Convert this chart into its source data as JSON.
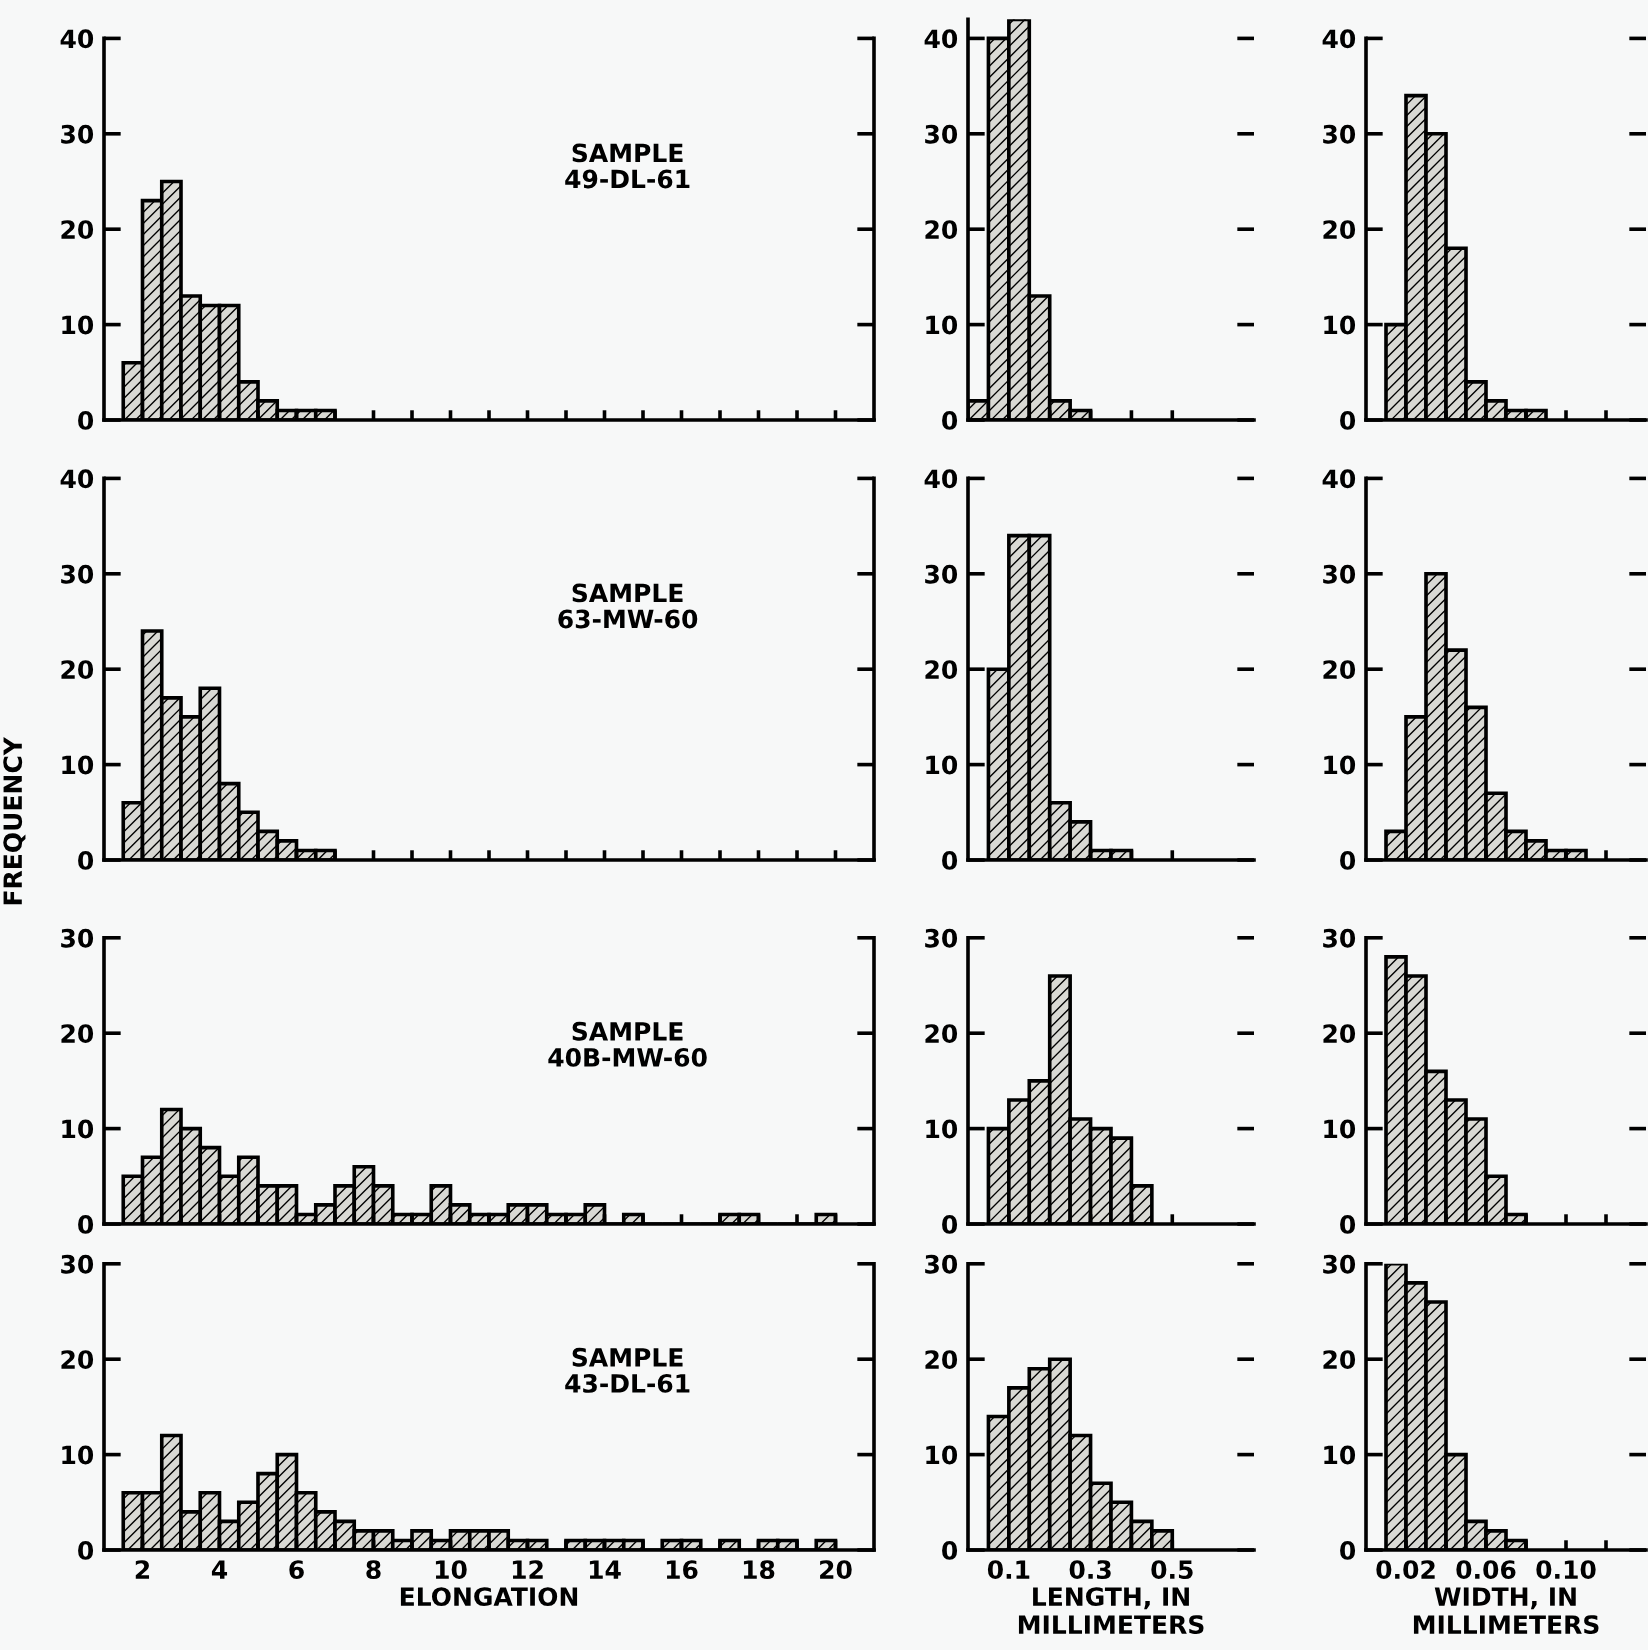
{
  "chart_data": [
    {
      "type": "histogram",
      "annotations": [
        "SAMPLE\n49-DL-61"
      ],
      "tick_labels": "y",
      "bins": [
        1.5,
        2,
        2.5,
        3,
        3.5,
        4,
        4.5,
        5,
        5.5,
        6,
        6.5,
        7
      ],
      "values": [
        6,
        23,
        25,
        13,
        12,
        12,
        4,
        2,
        1,
        1,
        1
      ],
      "xlim": [
        1,
        21
      ],
      "ylim": [
        0,
        40
      ],
      "yticks": [
        0,
        10,
        20,
        30,
        40
      ],
      "xticks": [
        2,
        {
          "value": 3,
          "label": null
        },
        4,
        {
          "value": 5,
          "label": null
        },
        6,
        {
          "value": 7,
          "label": null
        },
        8,
        {
          "value": 9,
          "label": null
        },
        10,
        {
          "value": 11,
          "label": null
        },
        12,
        {
          "value": 13,
          "label": null
        },
        14,
        {
          "value": 15,
          "label": null
        },
        16,
        {
          "value": 17,
          "label": null
        },
        18,
        {
          "value": 19,
          "label": null
        },
        20
      ]
    },
    {
      "type": "histogram",
      "tick_labels": "y",
      "bins": [
        0,
        0.05,
        0.1,
        0.15,
        0.2,
        0.25,
        0.3
      ],
      "values": [
        2,
        40,
        42,
        13,
        2,
        1
      ],
      "xlim": [
        0,
        0.7
      ],
      "ylim": [
        0,
        42
      ],
      "yticks": [
        0,
        10,
        20,
        30,
        40
      ],
      "xticks": [
        0.1,
        {
          "value": 0.2,
          "label": null
        },
        0.3,
        {
          "value": 0.4,
          "label": null
        },
        0.5
      ]
    },
    {
      "type": "histogram",
      "tick_labels": "y",
      "bins": [
        0.01,
        0.02,
        0.03,
        0.04,
        0.05,
        0.06,
        0.07,
        0.08,
        0.09
      ],
      "values": [
        10,
        34,
        30,
        18,
        4,
        2,
        1,
        1
      ],
      "xlim": [
        0,
        0.14
      ],
      "ylim": [
        0,
        40
      ],
      "yticks": [
        0,
        10,
        20,
        30,
        40
      ],
      "xticks": [
        0.02,
        {
          "value": 0.04,
          "label": null
        },
        0.06,
        {
          "value": 0.08,
          "label": null
        },
        0.1,
        {
          "value": 0.12,
          "label": null
        }
      ]
    },
    {
      "type": "histogram",
      "annotations": [
        "SAMPLE\n63-MW-60"
      ],
      "ylabel": "FREQUENCY",
      "tick_labels": "y",
      "bins": [
        1.5,
        2,
        2.5,
        3,
        3.5,
        4,
        4.5,
        5,
        5.5,
        6,
        6.5,
        7
      ],
      "values": [
        6,
        24,
        17,
        15,
        18,
        8,
        5,
        3,
        2,
        1,
        1
      ],
      "xlim": [
        1,
        21
      ],
      "ylim": [
        0,
        40
      ],
      "yticks": [
        0,
        10,
        20,
        30,
        40
      ],
      "xticks": [
        2,
        {
          "value": 3,
          "label": null
        },
        4,
        {
          "value": 5,
          "label": null
        },
        6,
        {
          "value": 7,
          "label": null
        },
        8,
        {
          "value": 9,
          "label": null
        },
        10,
        {
          "value": 11,
          "label": null
        },
        12,
        {
          "value": 13,
          "label": null
        },
        14,
        {
          "value": 15,
          "label": null
        },
        16,
        {
          "value": 17,
          "label": null
        },
        18,
        {
          "value": 19,
          "label": null
        },
        20
      ]
    },
    {
      "type": "histogram",
      "tick_labels": "y",
      "bins": [
        0.05,
        0.1,
        0.15,
        0.2,
        0.25,
        0.3,
        0.35,
        0.4
      ],
      "values": [
        20,
        34,
        34,
        6,
        4,
        1,
        1
      ],
      "xlim": [
        0,
        0.7
      ],
      "ylim": [
        0,
        40
      ],
      "yticks": [
        0,
        10,
        20,
        30,
        40
      ],
      "xticks": [
        0.1,
        {
          "value": 0.2,
          "label": null
        },
        0.3,
        {
          "value": 0.4,
          "label": null
        },
        0.5
      ]
    },
    {
      "type": "histogram",
      "tick_labels": "y",
      "bins": [
        0.01,
        0.02,
        0.03,
        0.04,
        0.05,
        0.06,
        0.07,
        0.08,
        0.09,
        0.1,
        0.11
      ],
      "values": [
        3,
        15,
        30,
        22,
        16,
        7,
        3,
        2,
        1,
        1
      ],
      "xlim": [
        0,
        0.14
      ],
      "ylim": [
        0,
        40
      ],
      "yticks": [
        0,
        10,
        20,
        30,
        40
      ],
      "xticks": [
        0.02,
        {
          "value": 0.04,
          "label": null
        },
        0.06,
        {
          "value": 0.08,
          "label": null
        },
        0.1,
        {
          "value": 0.12,
          "label": null
        }
      ]
    },
    {
      "type": "histogram",
      "annotations": [
        "SAMPLE\n40B-MW-60"
      ],
      "tick_labels": "y",
      "bins": [
        1.5,
        2,
        2.5,
        3,
        3.5,
        4,
        4.5,
        5,
        5.5,
        6,
        6.5,
        7,
        7.5,
        8,
        8.5,
        9,
        9.5,
        10,
        10.5,
        11,
        11.5,
        12,
        12.5,
        13,
        13.5,
        14,
        14.5,
        15,
        15.5,
        16,
        16.5,
        17,
        17.5,
        18,
        18.5,
        19,
        19.5,
        20
      ],
      "values": [
        5,
        7,
        12,
        10,
        8,
        5,
        7,
        4,
        4,
        1,
        2,
        4,
        6,
        4,
        1,
        1,
        4,
        2,
        1,
        1,
        2,
        2,
        1,
        1,
        2,
        0,
        1,
        0,
        0,
        0,
        0,
        1,
        1,
        0,
        0,
        0,
        1
      ],
      "xlim": [
        1,
        21
      ],
      "ylim": [
        0,
        30
      ],
      "yticks": [
        0,
        10,
        20,
        30
      ],
      "xticks": [
        2,
        {
          "value": 3,
          "label": null
        },
        4,
        {
          "value": 5,
          "label": null
        },
        6,
        {
          "value": 7,
          "label": null
        },
        8,
        {
          "value": 9,
          "label": null
        },
        10,
        {
          "value": 11,
          "label": null
        },
        12,
        {
          "value": 13,
          "label": null
        },
        14,
        {
          "value": 15,
          "label": null
        },
        16,
        {
          "value": 17,
          "label": null
        },
        18,
        {
          "value": 19,
          "label": null
        },
        20
      ]
    },
    {
      "type": "histogram",
      "tick_labels": "y",
      "bins": [
        0.05,
        0.1,
        0.15,
        0.2,
        0.25,
        0.3,
        0.35,
        0.4,
        0.45
      ],
      "values": [
        10,
        13,
        15,
        26,
        11,
        10,
        9,
        4
      ],
      "xlim": [
        0,
        0.7
      ],
      "ylim": [
        0,
        30
      ],
      "yticks": [
        0,
        10,
        20,
        30
      ],
      "xticks": [
        0.1,
        {
          "value": 0.2,
          "label": null
        },
        0.3,
        {
          "value": 0.4,
          "label": null
        },
        0.5
      ]
    },
    {
      "type": "histogram",
      "tick_labels": "y",
      "bins": [
        0.01,
        0.02,
        0.03,
        0.04,
        0.05,
        0.06,
        0.07,
        0.08
      ],
      "values": [
        28,
        26,
        16,
        13,
        11,
        5,
        1
      ],
      "xlim": [
        0,
        0.14
      ],
      "ylim": [
        0,
        30
      ],
      "yticks": [
        0,
        10,
        20,
        30
      ],
      "xticks": [
        0.02,
        {
          "value": 0.04,
          "label": null
        },
        0.06,
        {
          "value": 0.08,
          "label": null
        },
        0.1,
        {
          "value": 0.12,
          "label": null
        }
      ]
    },
    {
      "type": "histogram",
      "annotations": [
        "SAMPLE\n43-DL-61"
      ],
      "xlabel": "ELONGATION",
      "bins": [
        1.5,
        2,
        2.5,
        3,
        3.5,
        4,
        4.5,
        5,
        5.5,
        6,
        6.5,
        7,
        7.5,
        8,
        8.5,
        9,
        9.5,
        10,
        10.5,
        11,
        11.5,
        12,
        12.5,
        13,
        13.5,
        14,
        14.5,
        15,
        15.5,
        16,
        16.5,
        17,
        17.5,
        18,
        18.5,
        19,
        19.5,
        20
      ],
      "values": [
        6,
        6,
        12,
        4,
        6,
        3,
        5,
        8,
        10,
        6,
        4,
        3,
        2,
        2,
        1,
        2,
        1,
        2,
        2,
        2,
        1,
        1,
        0,
        1,
        1,
        1,
        1,
        0,
        1,
        1,
        0,
        1,
        0,
        1,
        1,
        0,
        1
      ],
      "xlim": [
        1,
        21
      ],
      "ylim": [
        0,
        30
      ],
      "yticks": [
        0,
        10,
        20,
        30
      ],
      "xticks": [
        2,
        {
          "value": 3,
          "label": null
        },
        4,
        {
          "value": 5,
          "label": null
        },
        6,
        {
          "value": 7,
          "label": null
        },
        8,
        {
          "value": 9,
          "label": null
        },
        10,
        {
          "value": 11,
          "label": null
        },
        12,
        {
          "value": 13,
          "label": null
        },
        14,
        {
          "value": 15,
          "label": null
        },
        16,
        {
          "value": 17,
          "label": null
        },
        18,
        {
          "value": 19,
          "label": null
        },
        20
      ]
    },
    {
      "type": "histogram",
      "xlabel": "LENGTH, IN\nMILLIMETERS",
      "bins": [
        0.05,
        0.1,
        0.15,
        0.2,
        0.25,
        0.3,
        0.35,
        0.4,
        0.45,
        0.5
      ],
      "values": [
        14,
        17,
        19,
        20,
        12,
        7,
        5,
        3,
        2
      ],
      "xlim": [
        0,
        0.7
      ],
      "ylim": [
        0,
        30
      ],
      "yticks": [
        0,
        10,
        20,
        30
      ],
      "xticks": [
        0.1,
        {
          "value": 0.2,
          "label": null
        },
        0.3,
        {
          "value": 0.4,
          "label": null
        },
        0.5
      ]
    },
    {
      "type": "histogram",
      "xlabel": "WIDTH, IN\nMILLIMETERS",
      "bins": [
        0.01,
        0.02,
        0.03,
        0.04,
        0.05,
        0.06,
        0.07,
        0.08
      ],
      "values": [
        30,
        28,
        26,
        10,
        3,
        2,
        1
      ],
      "xlim": [
        0,
        0.14
      ],
      "ylim": [
        0,
        30
      ],
      "yticks": [
        0,
        10,
        20,
        30
      ],
      "xticks": [
        0.02,
        {
          "value": 0.04,
          "label": null
        },
        0.06,
        {
          "value": 0.08,
          "label": null
        },
        {
          "value": 0.1,
          "label": "0.10"
        },
        {
          "value": 0.12,
          "label": null
        }
      ]
    }
  ]
}
